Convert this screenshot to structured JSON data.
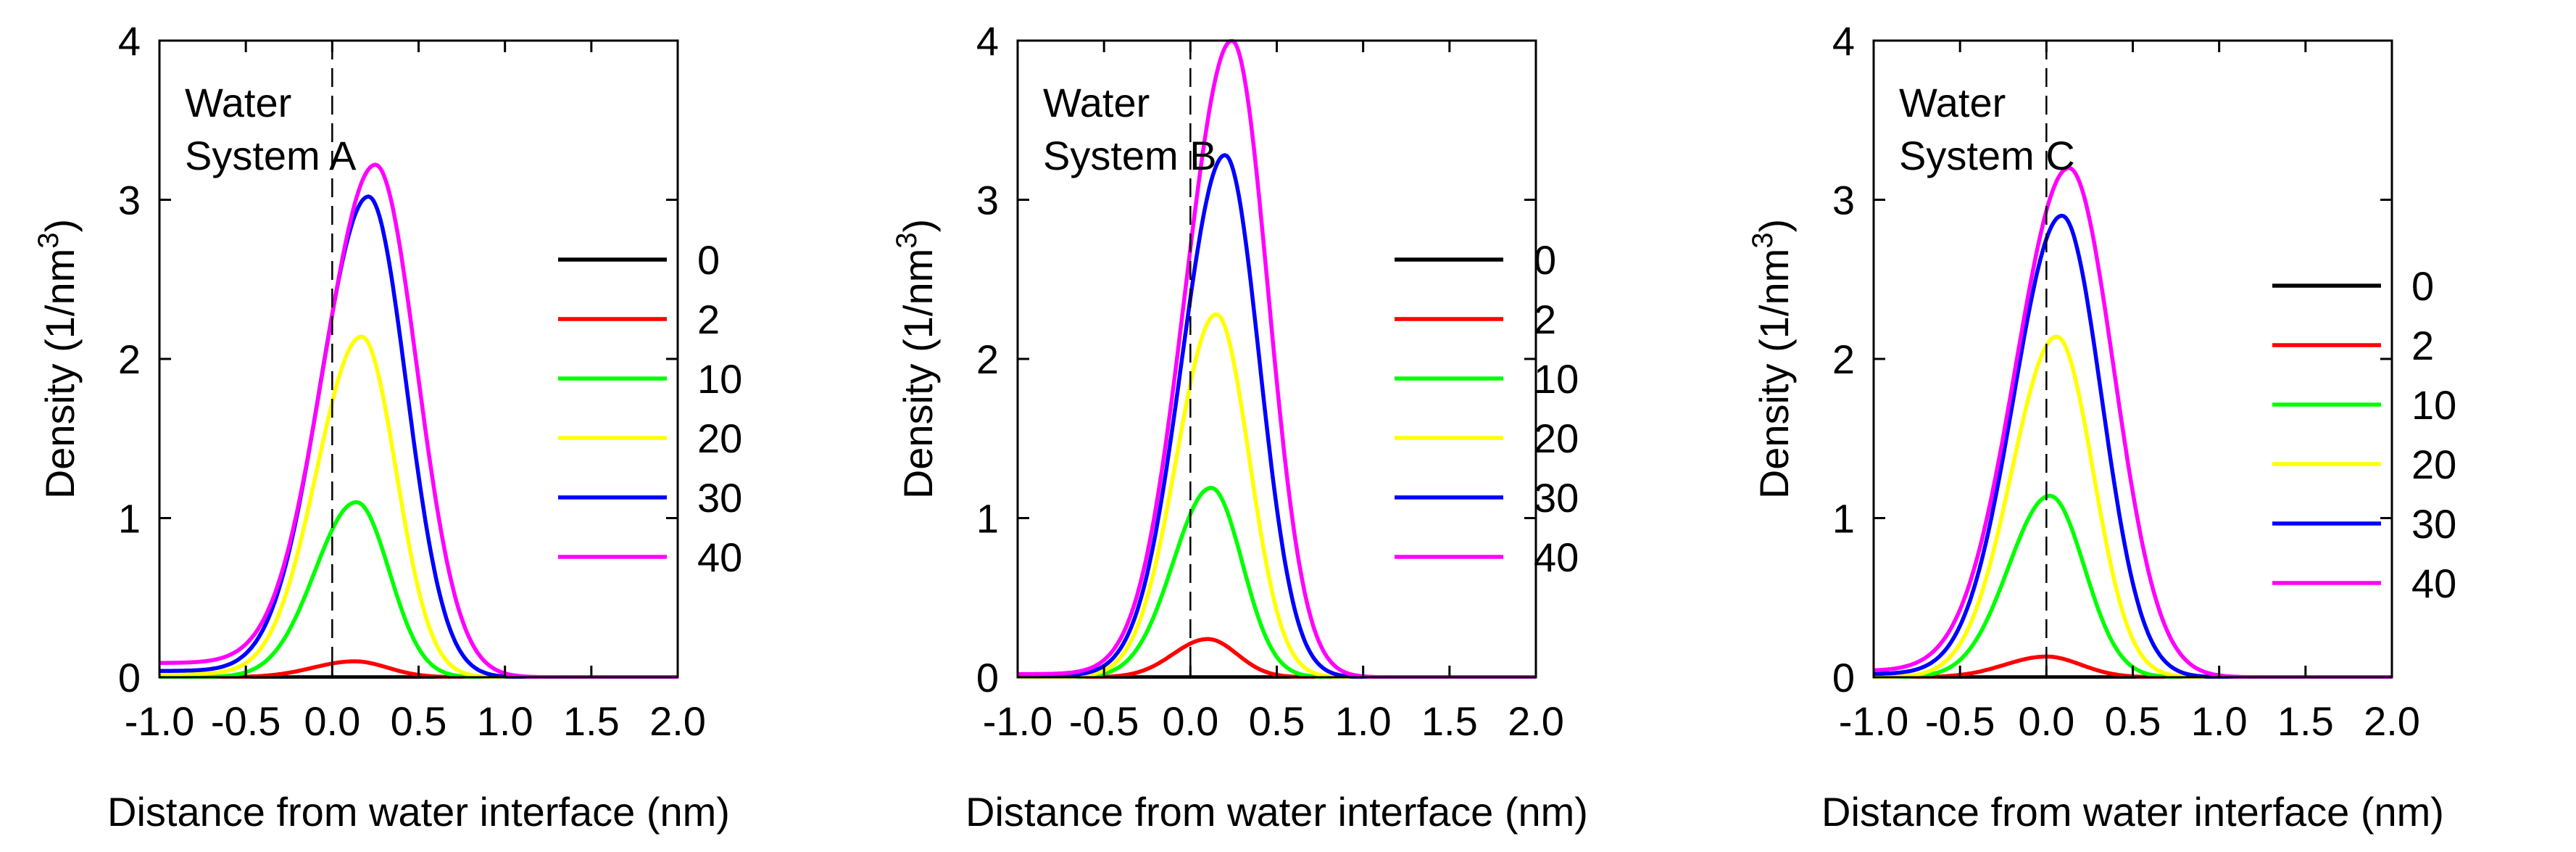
{
  "figure": {
    "colors": {
      "axis": "#000000",
      "background": "#ffffff"
    }
  },
  "legend_entries": [
    "0",
    "2",
    "10",
    "20",
    "30",
    "40"
  ],
  "series_colors": [
    "#000000",
    "#ff0000",
    "#00ff00",
    "#ffff00",
    "#0000ff",
    "#ff00ff"
  ],
  "chart_data": [
    {
      "type": "line",
      "panel": "A",
      "annotation": [
        "Water",
        "System A"
      ],
      "xlabel": "Distance from water interface (nm)",
      "ylabel": "Density (1/nm",
      "ylabel_sup": "3",
      "ylabel_close": ")",
      "xlim": [
        -1.0,
        2.0
      ],
      "ylim": [
        0,
        4
      ],
      "xticks": [
        "-1.0",
        "-0.5",
        "0.0",
        "0.5",
        "1.0",
        "1.5",
        "2.0"
      ],
      "yticks": [
        "0",
        "1",
        "2",
        "3",
        "4"
      ],
      "reference_line_x": 0.0,
      "legend_position": "right",
      "series": [
        {
          "name": "0",
          "color": "#000000",
          "peak": 0.0,
          "center": 0.15,
          "sigma_left": 0.2,
          "sigma_right": 0.2,
          "tail_level": 0.0,
          "tail_width": 0.3
        },
        {
          "name": "2",
          "color": "#ff0000",
          "peak": 0.1,
          "center": 0.13,
          "sigma_left": 0.24,
          "sigma_right": 0.19,
          "tail_level": 0.0,
          "tail_width": 0.3
        },
        {
          "name": "10",
          "color": "#00ff00",
          "peak": 1.1,
          "center": 0.14,
          "sigma_left": 0.24,
          "sigma_right": 0.19,
          "tail_level": 0.0,
          "tail_width": 0.3
        },
        {
          "name": "20",
          "color": "#ffff00",
          "peak": 2.14,
          "center": 0.17,
          "sigma_left": 0.26,
          "sigma_right": 0.2,
          "tail_level": 0.02,
          "tail_width": 0.3
        },
        {
          "name": "30",
          "color": "#0000ff",
          "peak": 3.02,
          "center": 0.21,
          "sigma_left": 0.28,
          "sigma_right": 0.22,
          "tail_level": 0.04,
          "tail_width": 0.3
        },
        {
          "name": "40",
          "color": "#ff00ff",
          "peak": 3.22,
          "center": 0.25,
          "sigma_left": 0.3,
          "sigma_right": 0.24,
          "tail_level": 0.09,
          "tail_width": 0.35
        }
      ]
    },
    {
      "type": "line",
      "panel": "B",
      "annotation": [
        "Water",
        "System B"
      ],
      "xlabel": "Distance from water interface (nm)",
      "ylabel": "Density (1/nm",
      "ylabel_sup": "3",
      "ylabel_close": ")",
      "xlim": [
        -1.0,
        2.0
      ],
      "ylim": [
        0,
        4
      ],
      "xticks": [
        "-1.0",
        "-0.5",
        "0.0",
        "0.5",
        "1.0",
        "1.5",
        "2.0"
      ],
      "yticks": [
        "0",
        "1",
        "2",
        "3",
        "4"
      ],
      "reference_line_x": 0.0,
      "legend_position": "right",
      "series": [
        {
          "name": "0",
          "color": "#000000",
          "peak": 0.0,
          "center": 0.15,
          "sigma_left": 0.2,
          "sigma_right": 0.2,
          "tail_level": 0.0,
          "tail_width": 0.3
        },
        {
          "name": "2",
          "color": "#ff0000",
          "peak": 0.24,
          "center": 0.1,
          "sigma_left": 0.2,
          "sigma_right": 0.17,
          "tail_level": 0.0,
          "tail_width": 0.3
        },
        {
          "name": "10",
          "color": "#00ff00",
          "peak": 1.19,
          "center": 0.12,
          "sigma_left": 0.22,
          "sigma_right": 0.18,
          "tail_level": 0.0,
          "tail_width": 0.3
        },
        {
          "name": "20",
          "color": "#ffff00",
          "peak": 2.28,
          "center": 0.15,
          "sigma_left": 0.23,
          "sigma_right": 0.19,
          "tail_level": 0.0,
          "tail_width": 0.3
        },
        {
          "name": "30",
          "color": "#0000ff",
          "peak": 3.28,
          "center": 0.2,
          "sigma_left": 0.25,
          "sigma_right": 0.2,
          "tail_level": 0.01,
          "tail_width": 0.3
        },
        {
          "name": "40",
          "color": "#ff00ff",
          "peak": 4.0,
          "center": 0.24,
          "sigma_left": 0.27,
          "sigma_right": 0.21,
          "tail_level": 0.02,
          "tail_width": 0.3
        }
      ]
    },
    {
      "type": "line",
      "panel": "C",
      "annotation": [
        "Water",
        "System C"
      ],
      "xlabel": "Distance from water interface (nm)",
      "ylabel": "Density (1/nm",
      "ylabel_sup": "3",
      "ylabel_close": ")",
      "xlim": [
        -1.0,
        2.0
      ],
      "ylim": [
        0,
        4
      ],
      "xticks": [
        "-1.0",
        "-0.5",
        "0.0",
        "0.5",
        "1.0",
        "1.5",
        "2.0"
      ],
      "yticks": [
        "0",
        "1",
        "2",
        "3",
        "4"
      ],
      "reference_line_x": 0.0,
      "legend_position": "right",
      "series": [
        {
          "name": "0",
          "color": "#000000",
          "peak": 0.0,
          "center": 0.1,
          "sigma_left": 0.2,
          "sigma_right": 0.2,
          "tail_level": 0.0,
          "tail_width": 0.3
        },
        {
          "name": "2",
          "color": "#ff0000",
          "peak": 0.13,
          "center": 0.0,
          "sigma_left": 0.24,
          "sigma_right": 0.2,
          "tail_level": 0.0,
          "tail_width": 0.3
        },
        {
          "name": "10",
          "color": "#00ff00",
          "peak": 1.14,
          "center": 0.02,
          "sigma_left": 0.24,
          "sigma_right": 0.2,
          "tail_level": 0.0,
          "tail_width": 0.3
        },
        {
          "name": "20",
          "color": "#ffff00",
          "peak": 2.14,
          "center": 0.06,
          "sigma_left": 0.26,
          "sigma_right": 0.21,
          "tail_level": 0.0,
          "tail_width": 0.3
        },
        {
          "name": "30",
          "color": "#0000ff",
          "peak": 2.9,
          "center": 0.09,
          "sigma_left": 0.28,
          "sigma_right": 0.23,
          "tail_level": 0.02,
          "tail_width": 0.3
        },
        {
          "name": "40",
          "color": "#ff00ff",
          "peak": 3.2,
          "center": 0.13,
          "sigma_left": 0.31,
          "sigma_right": 0.26,
          "tail_level": 0.04,
          "tail_width": 0.35
        }
      ]
    }
  ]
}
